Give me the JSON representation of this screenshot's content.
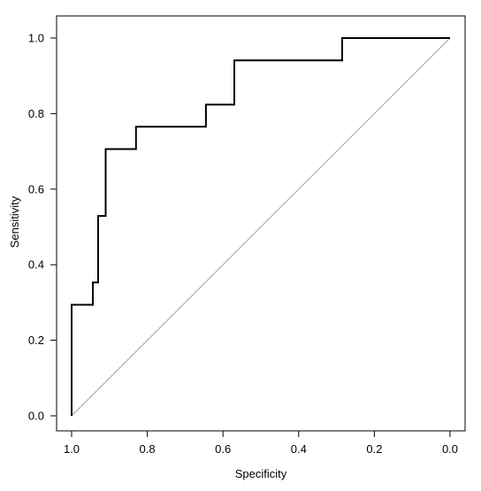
{
  "chart_data": {
    "type": "line",
    "title": "",
    "xlabel": "Specificity",
    "ylabel": "Sensitivity",
    "x_reversed": true,
    "xlim": [
      1.0,
      0.0
    ],
    "ylim": [
      0.0,
      1.0
    ],
    "x_ticks": [
      1.0,
      0.8,
      0.6,
      0.4,
      0.2,
      0.0
    ],
    "x_tick_labels": [
      "1.0",
      "0.8",
      "0.6",
      "0.4",
      "0.2",
      "0.0"
    ],
    "y_ticks": [
      0.0,
      0.2,
      0.4,
      0.6,
      0.8,
      1.0
    ],
    "y_tick_labels": [
      "0.0",
      "0.2",
      "0.4",
      "0.6",
      "0.8",
      "1.0"
    ],
    "grid": false,
    "legend": "none",
    "series": [
      {
        "kind": "step-curve",
        "color": "#000000",
        "points": [
          [
            1.0,
            0.0
          ],
          [
            1.0,
            0.294
          ],
          [
            0.944,
            0.294
          ],
          [
            0.944,
            0.353
          ],
          [
            0.93,
            0.353
          ],
          [
            0.93,
            0.529
          ],
          [
            0.91,
            0.529
          ],
          [
            0.91,
            0.706
          ],
          [
            0.83,
            0.706
          ],
          [
            0.83,
            0.765
          ],
          [
            0.645,
            0.765
          ],
          [
            0.645,
            0.824
          ],
          [
            0.57,
            0.824
          ],
          [
            0.57,
            0.941
          ],
          [
            0.285,
            0.941
          ],
          [
            0.285,
            1.0
          ],
          [
            0.0,
            1.0
          ]
        ]
      },
      {
        "kind": "reference-line",
        "color": "#a0a0a0",
        "points": [
          [
            1.0,
            0.0
          ],
          [
            0.0,
            1.0
          ]
        ]
      }
    ]
  }
}
